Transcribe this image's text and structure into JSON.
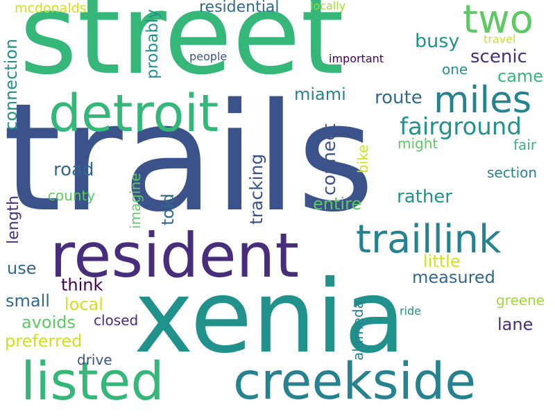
{
  "colors": {
    "background": "#ffffff",
    "navy": "#3b528b",
    "purple": "#472d7b",
    "dark_purple": "#440154",
    "blue": "#31688e",
    "teal": "#21918c",
    "cyan_teal": "#26828e",
    "green": "#35b779",
    "light_green": "#5ec962",
    "yellow_green": "#a0da39",
    "yellow": "#d0e11c",
    "bright_yellow": "#fde725"
  },
  "words": {
    "street": "street",
    "trails": "trails",
    "xenia": "xenia",
    "resident": "resident",
    "detroit": "detroit",
    "creekside": "creekside",
    "listed": "listed",
    "traillink": "traillink",
    "miles": "miles",
    "two": "two",
    "fairground": "fairground",
    "mcdonalds": "mcdonalds",
    "residential": "residential",
    "locally": "locally",
    "probably": "probably",
    "connection": "connection",
    "busy": "busy",
    "travel": "travel",
    "people": "people",
    "important": "important",
    "scenic": "scenic",
    "one": "one",
    "came": "came",
    "miami": "miami",
    "route": "route",
    "connect": "connect",
    "tracking": "tracking",
    "bike": "bike",
    "might": "might",
    "fair": "fair",
    "road": "road",
    "county": "county",
    "imagine": "imagine",
    "told": "told",
    "length": "length",
    "section": "section",
    "entire": "entire",
    "rather": "rather",
    "use": "use",
    "little": "little",
    "think": "think",
    "measured": "measured",
    "small": "small",
    "local": "local",
    "avoids": "avoids",
    "closed": "closed",
    "alameda": "alameda",
    "ride": "ride",
    "greene": "greene",
    "lane": "lane",
    "preferred": "preferred",
    "drive": "drive"
  }
}
